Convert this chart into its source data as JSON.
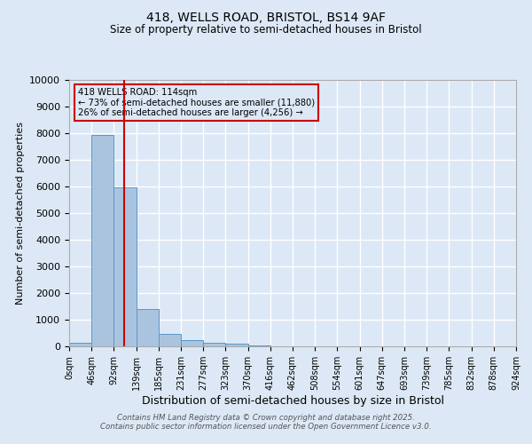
{
  "title1": "418, WELLS ROAD, BRISTOL, BS14 9AF",
  "title2": "Size of property relative to semi-detached houses in Bristol",
  "xlabel": "Distribution of semi-detached houses by size in Bristol",
  "ylabel": "Number of semi-detached properties",
  "annotation_line1": "418 WELLS ROAD: 114sqm",
  "annotation_line2": "← 73% of semi-detached houses are smaller (11,880)",
  "annotation_line3": "26% of semi-detached houses are larger (4,256) →",
  "bin_labels": [
    "0sqm",
    "46sqm",
    "92sqm",
    "139sqm",
    "185sqm",
    "231sqm",
    "277sqm",
    "323sqm",
    "370sqm",
    "416sqm",
    "462sqm",
    "508sqm",
    "554sqm",
    "601sqm",
    "647sqm",
    "693sqm",
    "739sqm",
    "785sqm",
    "832sqm",
    "878sqm",
    "924sqm"
  ],
  "bar_values": [
    130,
    7930,
    5980,
    1410,
    480,
    220,
    130,
    90,
    50,
    0,
    0,
    0,
    0,
    0,
    0,
    0,
    0,
    0,
    0,
    0
  ],
  "bar_color": "#aac4e0",
  "bar_edge_color": "#5599cc",
  "vline_x": 2.47,
  "vline_color": "#cc0000",
  "ylim": [
    0,
    10000
  ],
  "yticks": [
    0,
    1000,
    2000,
    3000,
    4000,
    5000,
    6000,
    7000,
    8000,
    9000,
    10000
  ],
  "bg_color": "#dce8f5",
  "grid_color": "#ffffff",
  "footer1": "Contains HM Land Registry data © Crown copyright and database right 2025.",
  "footer2": "Contains public sector information licensed under the Open Government Licence v3.0."
}
